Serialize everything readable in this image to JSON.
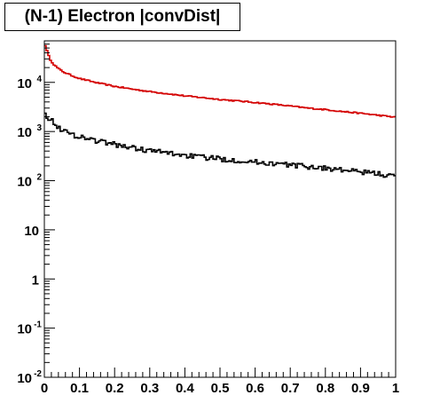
{
  "title": "(N-1) Electron |convDist|",
  "chart_data": {
    "type": "line",
    "title": "(N-1) Electron |convDist|",
    "xlabel": "",
    "ylabel": "",
    "xlim": [
      0,
      1
    ],
    "ylim": [
      0.01,
      70000
    ],
    "log_y": true,
    "grid": false,
    "legend": "none",
    "x_ticks": [
      0,
      0.1,
      0.2,
      0.3,
      0.4,
      0.5,
      0.6,
      0.7,
      0.8,
      0.9,
      1
    ],
    "x_tick_labels": [
      "0",
      "0.1",
      "0.2",
      "0.3",
      "0.4",
      "0.5",
      "0.6",
      "0.7",
      "0.8",
      "0.9",
      "1"
    ],
    "y_ticks": [
      {
        "value": 0.01,
        "base": "10",
        "exp": "-2"
      },
      {
        "value": 0.1,
        "base": "10",
        "exp": "-1"
      },
      {
        "value": 1,
        "base": "1",
        "exp": ""
      },
      {
        "value": 10,
        "base": "10",
        "exp": ""
      },
      {
        "value": 100,
        "base": "10",
        "exp": "2"
      },
      {
        "value": 1000,
        "base": "10",
        "exp": "3"
      },
      {
        "value": 10000,
        "base": "10",
        "exp": "4"
      }
    ],
    "series": [
      {
        "color": "#d40000",
        "style": "step",
        "x": [
          0.0,
          0.005,
          0.01,
          0.015,
          0.02,
          0.03,
          0.04,
          0.05,
          0.07,
          0.1,
          0.15,
          0.2,
          0.25,
          0.3,
          0.35,
          0.4,
          0.45,
          0.5,
          0.55,
          0.6,
          0.65,
          0.7,
          0.75,
          0.8,
          0.85,
          0.9,
          0.95,
          1.0
        ],
        "y": [
          65000,
          50000,
          38000,
          31000,
          27000,
          22000,
          19000,
          17000,
          14500,
          12000,
          9800,
          8300,
          7300,
          6500,
          5900,
          5300,
          4900,
          4500,
          4200,
          3900,
          3600,
          3300,
          3000,
          2800,
          2550,
          2350,
          2150,
          1950
        ]
      },
      {
        "color": "#000000",
        "style": "step",
        "x": [
          0.0,
          0.005,
          0.01,
          0.015,
          0.02,
          0.03,
          0.04,
          0.05,
          0.07,
          0.1,
          0.15,
          0.2,
          0.25,
          0.3,
          0.35,
          0.4,
          0.45,
          0.5,
          0.55,
          0.6,
          0.65,
          0.7,
          0.75,
          0.8,
          0.85,
          0.9,
          0.95,
          1.0
        ],
        "y": [
          3100,
          2200,
          2000,
          1800,
          1700,
          1450,
          1250,
          1100,
          900,
          800,
          650,
          550,
          470,
          410,
          370,
          330,
          300,
          280,
          260,
          240,
          225,
          210,
          195,
          180,
          165,
          150,
          140,
          120
        ]
      }
    ]
  }
}
